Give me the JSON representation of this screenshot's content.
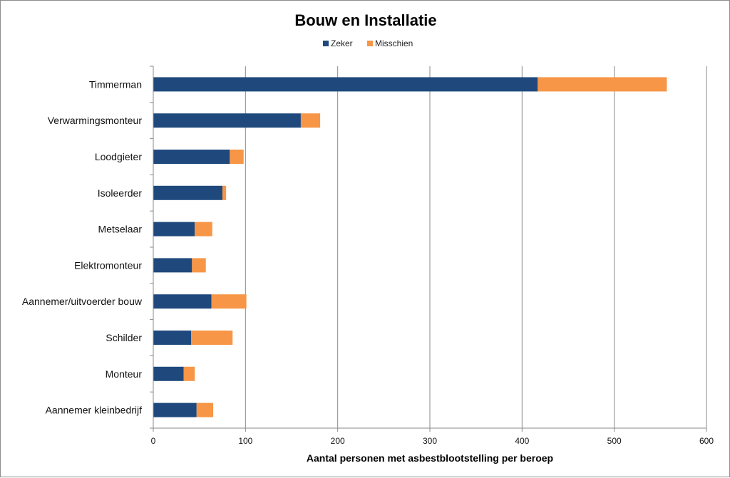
{
  "chart_data": {
    "type": "bar",
    "orientation": "horizontal",
    "stacked": true,
    "title": "Bouw en Installatie",
    "xlabel": "Aantal personen met asbestblootstelling per beroep",
    "ylabel": "",
    "xlim": [
      0,
      600
    ],
    "xticks": [
      0,
      100,
      200,
      300,
      400,
      500,
      600
    ],
    "grid": "vertical",
    "legend_position": "top",
    "categories": [
      "Timmerman",
      "Verwarmingsmonteur",
      "Loodgieter",
      "Isoleerder",
      "Metselaar",
      "Elektromonteur",
      "Aannemer/uitvoerder bouw",
      "Schilder",
      "Monteur",
      "Aannemer kleinbedrijf"
    ],
    "series": [
      {
        "name": "Zeker",
        "color": "#1f497d",
        "values": [
          417,
          160,
          83,
          75,
          45,
          42,
          63,
          41,
          33,
          47
        ]
      },
      {
        "name": "Misschien",
        "color": "#f79646",
        "values": [
          140,
          21,
          15,
          4,
          19,
          15,
          38,
          45,
          12,
          18
        ]
      }
    ]
  }
}
